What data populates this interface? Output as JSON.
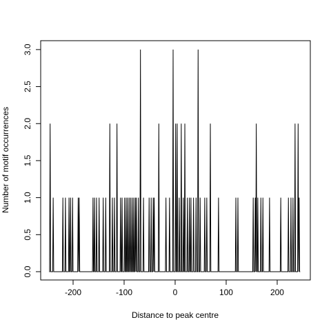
{
  "chart_data": {
    "type": "line",
    "xlabel": "Distance to peak centre",
    "ylabel": "Number of motif occurrences",
    "color": "#000000",
    "xlim": [
      -263.5,
      264.9
    ],
    "ylim": [
      -0.112,
      3.12
    ],
    "xticks": [
      -200,
      -100,
      0,
      100,
      200
    ],
    "yticks": [
      {
        "value": 0,
        "label": "0.0"
      },
      {
        "value": 0.5,
        "label": "0.5"
      },
      {
        "value": 1,
        "label": "1.0"
      },
      {
        "value": 1.5,
        "label": "1.5"
      },
      {
        "value": 2,
        "label": "2.0"
      },
      {
        "value": 2.5,
        "label": "2.5"
      },
      {
        "value": 3,
        "label": "3.0"
      }
    ],
    "x": [
      -247,
      -246,
      -245,
      -244,
      -240,
      -239,
      -238,
      -221,
      -220,
      -219,
      -216,
      -215,
      -214,
      -209,
      -208,
      -207,
      -206,
      -205,
      -204,
      -202,
      -201,
      -200,
      -191,
      -190,
      -189,
      -188,
      -187,
      -162,
      -161,
      -160,
      -159,
      -158,
      -157,
      -155,
      -154,
      -153,
      -150,
      -149,
      -148,
      -142,
      -141,
      -140,
      -137,
      -136,
      -135,
      -129,
      -128,
      -127,
      -124,
      -123,
      -122,
      -120,
      -119,
      -118,
      -115,
      -114,
      -113,
      -108,
      -107,
      -106,
      -105,
      -104,
      -103,
      -100,
      -99,
      -98,
      -97,
      -96,
      -95,
      -94,
      -93,
      -92,
      -91,
      -90,
      -89,
      -88,
      -87,
      -86,
      -85,
      -84,
      -83,
      -82,
      -81,
      -80,
      -79,
      -78,
      -77,
      -76,
      -75,
      -73,
      -72,
      -71,
      -69,
      -68,
      -67,
      -63,
      -62,
      -61,
      -52,
      -51,
      -50,
      -48,
      -47,
      -46,
      -44,
      -43,
      -42,
      -41,
      -40,
      -33,
      -32,
      -31,
      -19,
      -18,
      -17,
      -12,
      -11,
      -10,
      -5,
      -4,
      -3,
      0,
      1,
      2,
      3,
      4,
      5,
      7,
      8,
      9,
      11,
      12,
      13,
      15,
      16,
      17,
      18,
      19,
      20,
      23,
      24,
      25,
      27,
      28,
      29,
      30,
      31,
      32,
      35,
      36,
      37,
      40,
      41,
      42,
      44,
      45,
      46,
      48,
      49,
      50,
      57,
      58,
      59,
      61,
      62,
      63,
      68,
      69,
      70,
      84,
      85,
      86,
      118,
      119,
      120,
      122,
      123,
      124,
      152,
      153,
      154,
      156,
      157,
      158,
      159,
      160,
      161,
      162,
      163,
      167,
      168,
      169,
      171,
      172,
      173,
      184,
      185,
      186,
      206,
      207,
      208,
      221,
      222,
      223,
      226,
      227,
      228,
      230,
      231,
      232,
      234,
      235,
      236,
      240,
      241,
      242,
      243,
      244,
      245
    ],
    "values": [
      0,
      0,
      2,
      0,
      0,
      1,
      0,
      0,
      1,
      0,
      0,
      1,
      0,
      0,
      1,
      0,
      0,
      1,
      0,
      0,
      1,
      0,
      0,
      1,
      0,
      1,
      0,
      0,
      1,
      0,
      0,
      1,
      0,
      0,
      1,
      0,
      0,
      1,
      0,
      0,
      1,
      0,
      0,
      1,
      0,
      0,
      2,
      0,
      0,
      1,
      0,
      0,
      1,
      0,
      0,
      2,
      0,
      0,
      1,
      0,
      0,
      1,
      0,
      0,
      1,
      0,
      0,
      1,
      0,
      0,
      1,
      0,
      0,
      1,
      0,
      0,
      1,
      0,
      0,
      1,
      0,
      0,
      1,
      0,
      0,
      1,
      0,
      1,
      0,
      0,
      1,
      0,
      0,
      3,
      0,
      0,
      1,
      0,
      0,
      1,
      0,
      0,
      1,
      0,
      0,
      1,
      0,
      1,
      0,
      0,
      2,
      0,
      0,
      1,
      0,
      0,
      1,
      0,
      0,
      3,
      0,
      0,
      2,
      0,
      0,
      2,
      0,
      0,
      1,
      0,
      0,
      2,
      0,
      0,
      1,
      0,
      0,
      2,
      0,
      0,
      1,
      0,
      0,
      1,
      0,
      0,
      1,
      0,
      0,
      1,
      0,
      0,
      1,
      0,
      0,
      3,
      0,
      0,
      1,
      0,
      0,
      1,
      0,
      0,
      1,
      0,
      0,
      2,
      0,
      0,
      1,
      0,
      0,
      1,
      0,
      0,
      1,
      0,
      0,
      1,
      0,
      0,
      1,
      0,
      2,
      0,
      0,
      1,
      0,
      0,
      1,
      0,
      0,
      1,
      0,
      0,
      1,
      0,
      0,
      1,
      0,
      0,
      1,
      0,
      0,
      1,
      0,
      0,
      1,
      0,
      0,
      2,
      0,
      0,
      2,
      0,
      1,
      0,
      0
    ]
  }
}
